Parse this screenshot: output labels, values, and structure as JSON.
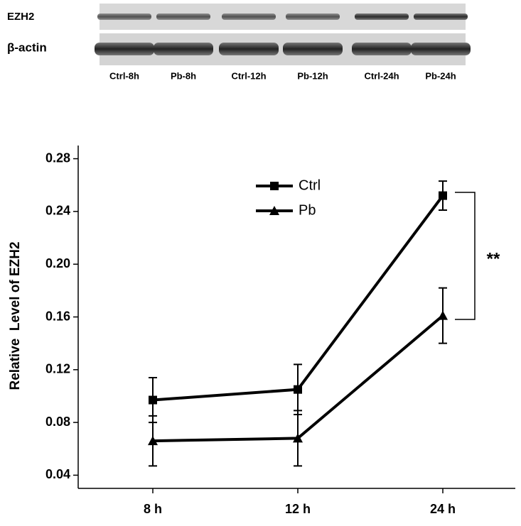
{
  "blot": {
    "rows": [
      "EZH2",
      "β-actin"
    ],
    "lanes": [
      "Ctrl-8h",
      "Pb-8h",
      "Ctrl-12h",
      "Pb-12h",
      "Ctrl-24h",
      "Pb-24h"
    ]
  },
  "chart_data": {
    "type": "line",
    "y_label": "Relative  Level of EZH2",
    "categories": [
      "8 h",
      "12 h",
      "24 h"
    ],
    "series": [
      {
        "name": "Ctrl",
        "color": "#000000",
        "marker": "square",
        "values": [
          0.097,
          0.105,
          0.252
        ],
        "errors": [
          0.017,
          0.019,
          0.011
        ]
      },
      {
        "name": "Pb",
        "color": "#000000",
        "marker": "triangle",
        "values": [
          0.066,
          0.068,
          0.161
        ],
        "errors": [
          0.019,
          0.021,
          0.021
        ]
      }
    ],
    "ylim": [
      0.03,
      0.29
    ],
    "yticks": [
      0.04,
      0.08,
      0.12,
      0.16,
      {
        "value": 0.2,
        "label": "0.20"
      },
      0.24,
      0.28
    ],
    "annotation": "**"
  }
}
